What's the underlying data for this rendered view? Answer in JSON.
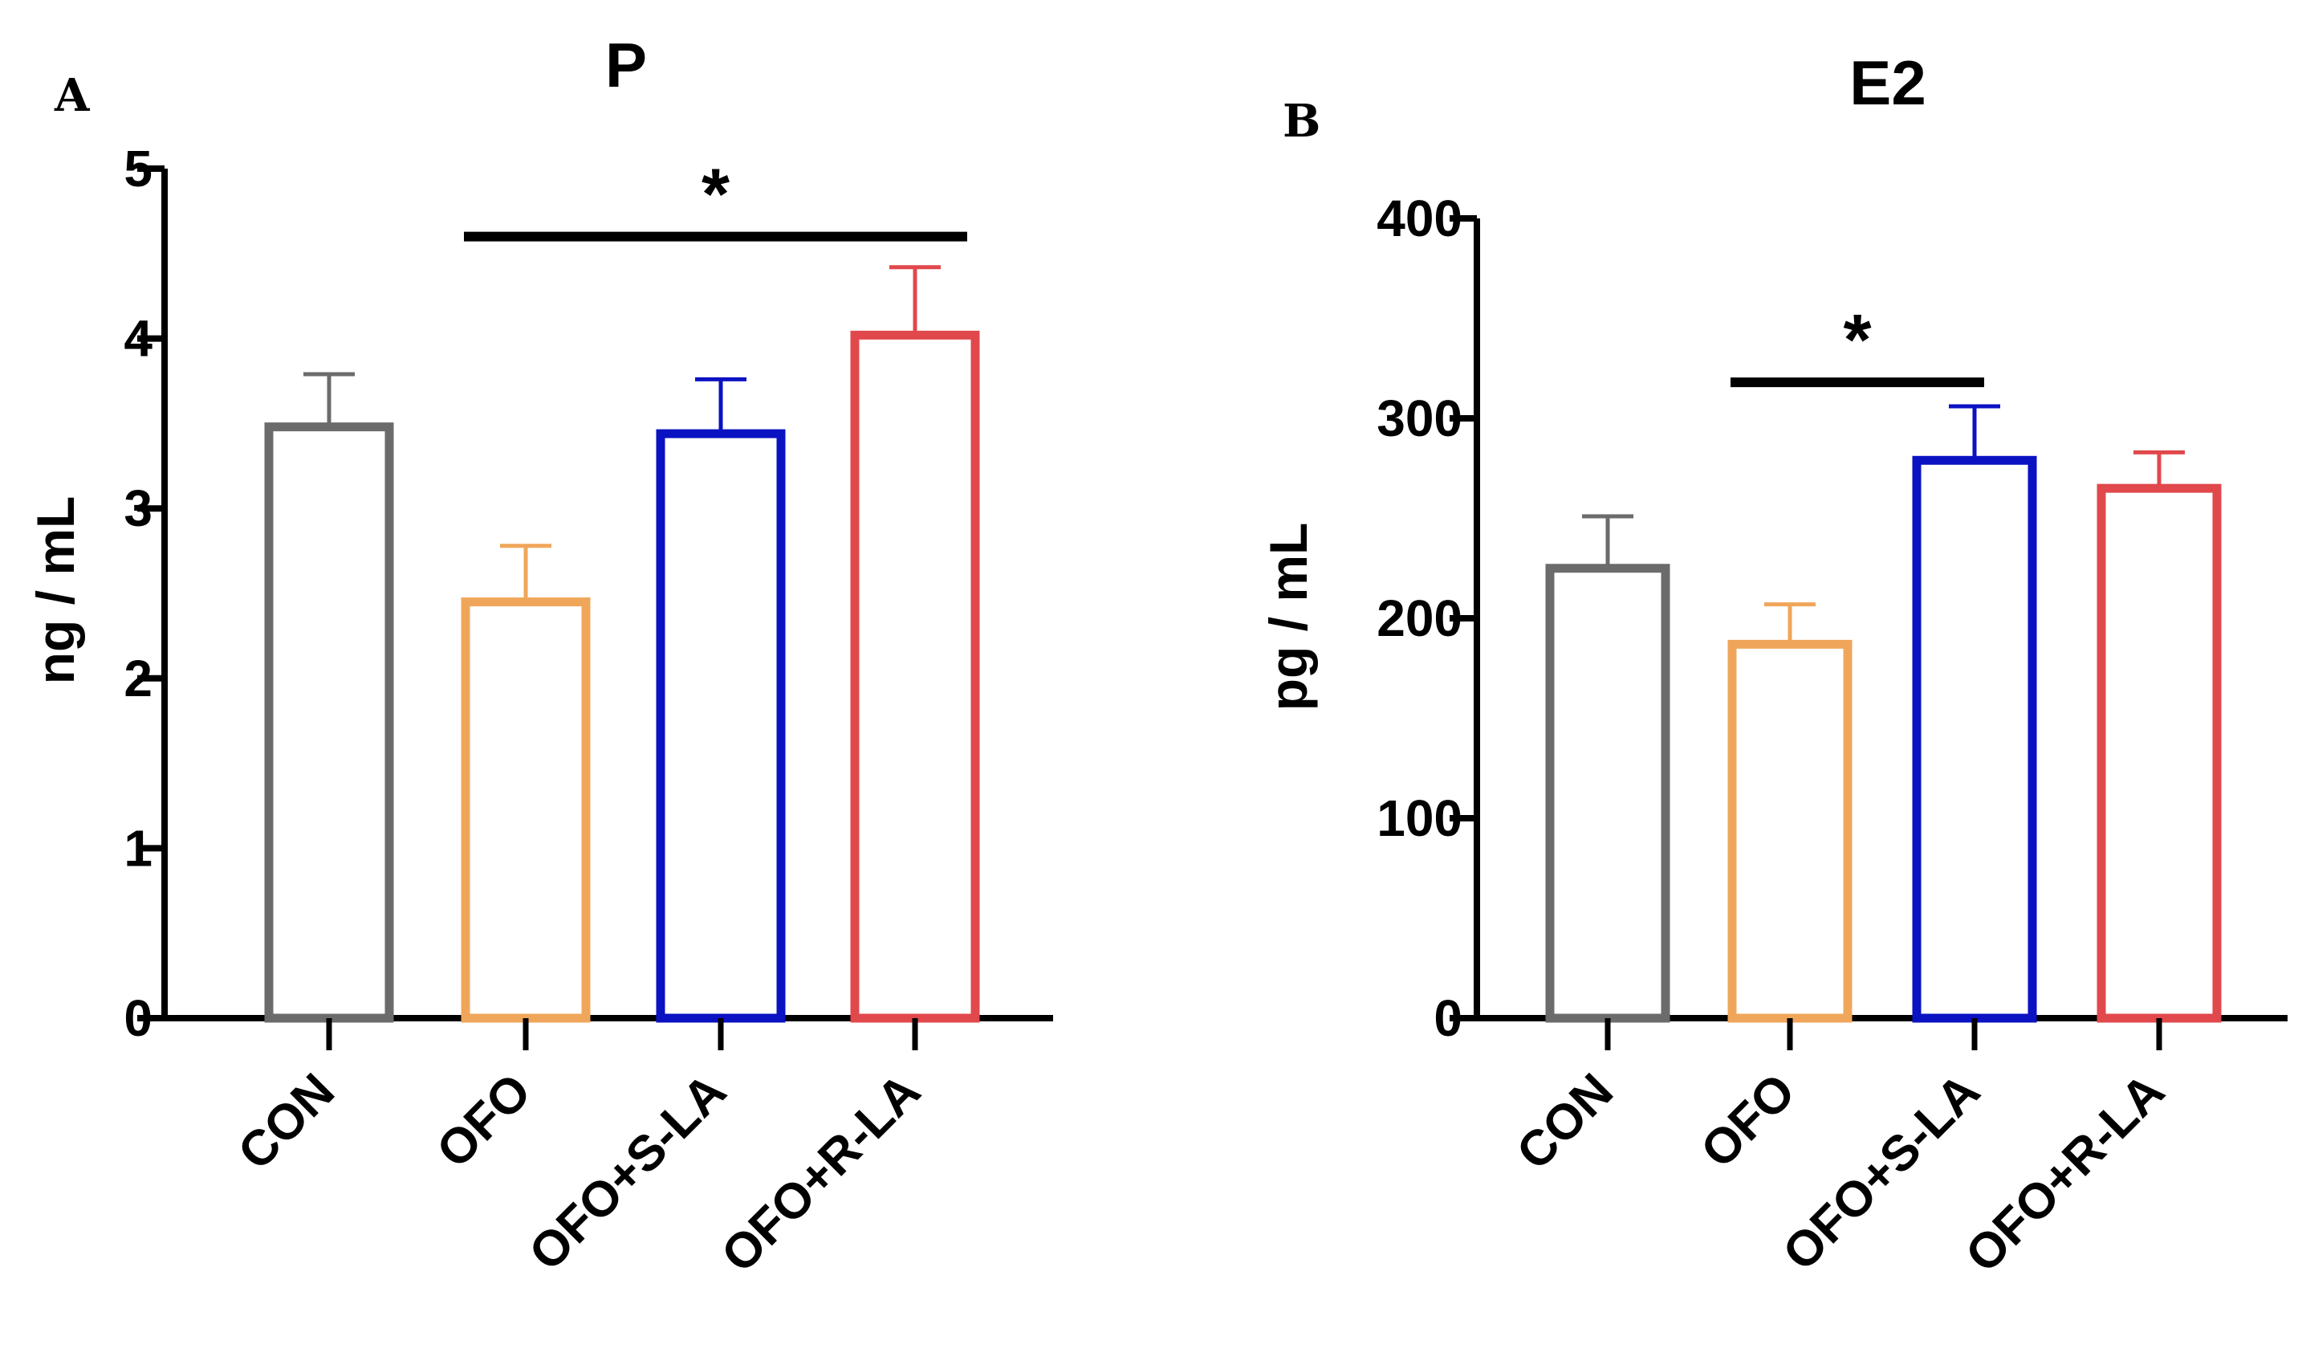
{
  "chart_data": [
    {
      "type": "bar",
      "panel": "A",
      "title": "P",
      "ylabel": "ng / mL",
      "ylim": [
        0,
        5
      ],
      "yticks": [
        "0",
        "1",
        "2",
        "3",
        "4",
        "5"
      ],
      "categories": [
        "CON",
        "OFO",
        "OFO+S-LA",
        "OFO+R-LA"
      ],
      "values": [
        3.48,
        2.45,
        3.44,
        4.02
      ],
      "errors": [
        0.31,
        0.33,
        0.32,
        0.4
      ],
      "colors": [
        "#6b6b6b",
        "#f0a65a",
        "#0b12c2",
        "#e0484c"
      ],
      "significance": {
        "from": 1,
        "to": 3,
        "y": 4.6,
        "label": "*"
      }
    },
    {
      "type": "bar",
      "panel": "B",
      "title": "E2",
      "ylabel": "pg / mL",
      "ylim": [
        0,
        400
      ],
      "yticks": [
        "0",
        "100",
        "200",
        "300",
        "400"
      ],
      "categories": [
        "CON",
        "OFO",
        "OFO+S-LA",
        "OFO+R-LA"
      ],
      "values": [
        225,
        187,
        279,
        265
      ],
      "errors": [
        26,
        20,
        27,
        18
      ],
      "colors": [
        "#6b6b6b",
        "#f0a65a",
        "#0b12c2",
        "#e0484c"
      ],
      "significance": {
        "from": 1,
        "to": 2,
        "y": 318,
        "label": "*"
      }
    }
  ]
}
